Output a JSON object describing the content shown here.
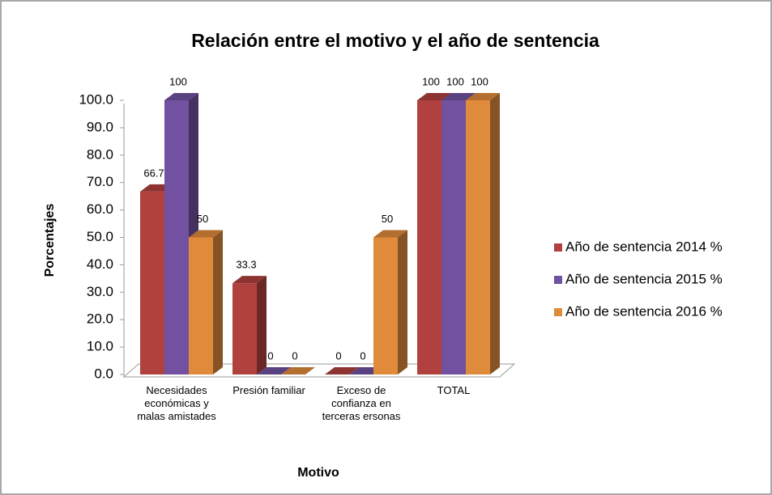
{
  "chart_data": {
    "type": "bar3d",
    "title": "Relación entre el motivo y el año de sentencia",
    "xlabel": "Motivo",
    "ylabel": "Porcentajes",
    "categories": [
      "Necesidades económicas y malas amistades",
      "Presión familiar",
      "Exceso de confianza en terceras ersonas",
      "TOTAL"
    ],
    "series": [
      {
        "name": "Año de sentencia 2014 %",
        "color": "#b0413e",
        "values": [
          66.7,
          33.3,
          0,
          100
        ]
      },
      {
        "name": "Año de sentencia 2015 %",
        "color": "#7151a0",
        "values": [
          100,
          0,
          0,
          100
        ]
      },
      {
        "name": "Año de sentencia 2016 %",
        "color": "#e08a3c",
        "values": [
          50,
          0,
          50,
          100
        ]
      }
    ],
    "ylim": [
      0,
      100
    ],
    "yticks": [
      {
        "value": 0,
        "label": "0.0"
      },
      {
        "value": 10,
        "label": "10.0"
      },
      {
        "value": 20,
        "label": "20.0"
      },
      {
        "value": 30,
        "label": "30.0"
      },
      {
        "value": 40,
        "label": "40.0"
      },
      {
        "value": 50,
        "label": "50.0"
      },
      {
        "value": 60,
        "label": "60.0"
      },
      {
        "value": 70,
        "label": "70.0"
      },
      {
        "value": 80,
        "label": "80.0"
      },
      {
        "value": 90,
        "label": "90.0"
      },
      {
        "value": 100,
        "label": "100.0"
      }
    ],
    "legend": "right"
  }
}
